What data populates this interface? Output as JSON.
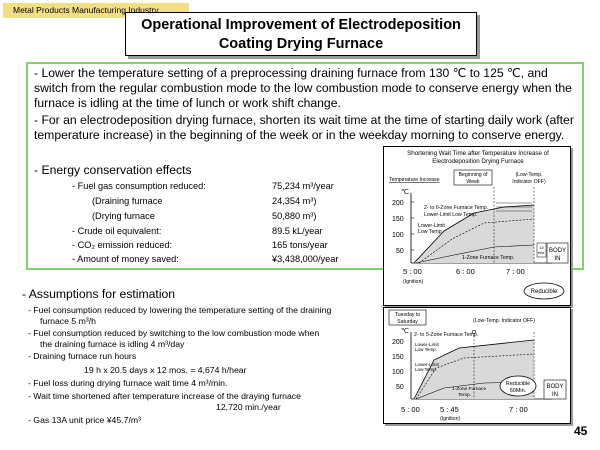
{
  "header": {
    "industry_tag": "Metal Products Manufacturing Industry",
    "title_line1": "Operational Improvement of Electrodeposition",
    "title_line2": "Coating Drying Furnace"
  },
  "bullets": [
    "- Lower the temperature setting of a preprocessing draining furnace from 130 ℃ to  125 ℃, and switch from the regular combustion mode to the low combustion mode  to conserve energy when the furnace is idling at the time of lunch or work shift change.",
    "- For an electrodeposition drying furnace, shorten its wait time at the time of starting daily work (after temperature increase) in the beginning of the week or in the weekday morning to conserve energy."
  ],
  "effects": {
    "heading": "- Energy conservation effects",
    "rows": [
      {
        "label": "- Fuel gas consumption reduced:",
        "value": "75,234 m³/year"
      },
      {
        "label": "(Draining furnace",
        "value": "24,354 m³)"
      },
      {
        "label": "(Drying furnace",
        "value": "50,880 m³)"
      },
      {
        "label": "- Crude oil equivalent:",
        "value": "89.5 kL/year"
      },
      {
        "label": "- CO₂ emission reduced:",
        "value": "165 tons/year"
      },
      {
        "label": "- Amount of money saved:",
        "value": "¥3,438,000/year"
      }
    ]
  },
  "assumptions": {
    "heading": "- Assumptions for estimation",
    "lines": [
      "- Fuel consumption reduced by lowering the temperature setting of the draining",
      "furnace                                        5 m³/h",
      "- Fuel consumption reduced by switching to the low combustion mode when",
      "the draining furnace is idling                  4 m³/day",
      "- Draining furnace run hours",
      "19 h x 20.5 days x 12 mos. = 4,674 h/hear",
      "- Fuel loss during drying furnace wait time  4 m³/min.",
      "- Wait time shortened after temperature increase of the draying furnace",
      "12,720 min./year",
      "- Gas 13A unit price                        ¥45.7/m³"
    ]
  },
  "chart1": {
    "title_line1": "Shortening Wait Time after Temperature Increase of",
    "title_line2": "Electrodeposition Drying Furnace",
    "label_temp_increase": "Temperature Increase",
    "label_begin_line1": "Beginning of",
    "label_begin_line2": "Week",
    "label_indicator_line1": "(Low-Temp.",
    "label_indicator_line2": "Indicator OFF)",
    "unit": "℃",
    "y_ticks": [
      "200",
      "150",
      "100",
      "50"
    ],
    "label_zone_2_6": "2- to 6-Zone Furnace Temp.",
    "label_lower_limit": "Lower-Limit Low Temp.",
    "label_lower_limit2_line1": "Lower-Limit",
    "label_lower_limit2_line2": "Low Temp.",
    "label_zone_1": "1-Zone Furnace Temp.",
    "label_small_line1": "15",
    "label_small_line2": "min.",
    "label_body_line1": "BODY",
    "label_body_line2": "IN",
    "x_ticks": [
      "5 : 00",
      "6 : 00",
      "7 : 00"
    ],
    "x_sub": "(Ignition)",
    "reducible": "Reducible"
  },
  "chart2": {
    "label_tuesday_line1": "Tuesday to",
    "label_tuesday_line2": "Saturday",
    "label_indicator": "(Low-Temp. Indicator OFF)",
    "unit": "℃",
    "y_ticks": [
      "200",
      "150",
      "100",
      "50"
    ],
    "label_zone_2_5": "2- to 5-Zone Furnace Temp.",
    "label_ll1_line1": "Lower-Limit",
    "label_ll1_line2": "Low Temp.",
    "label_ll2_line1": "Lower-Limit",
    "label_ll2_line2": "Low Temp.",
    "label_zone_1_line1": "1-Zone Furnace",
    "label_zone_1_line2": "Temp.",
    "reducible_line1": "Reducible",
    "reducible_line2": "60Min.",
    "label_body_line1": "BODY",
    "label_body_line2": "IN",
    "x_ticks": [
      "5 : 00",
      "5 : 45",
      "7 : 00"
    ],
    "x_sub": "(Ignition)"
  },
  "page_number": "45",
  "colors": {
    "tag_bg": "#f2df84",
    "green_border": "#7fd36b",
    "chart_fill": "#d9d9d9"
  }
}
